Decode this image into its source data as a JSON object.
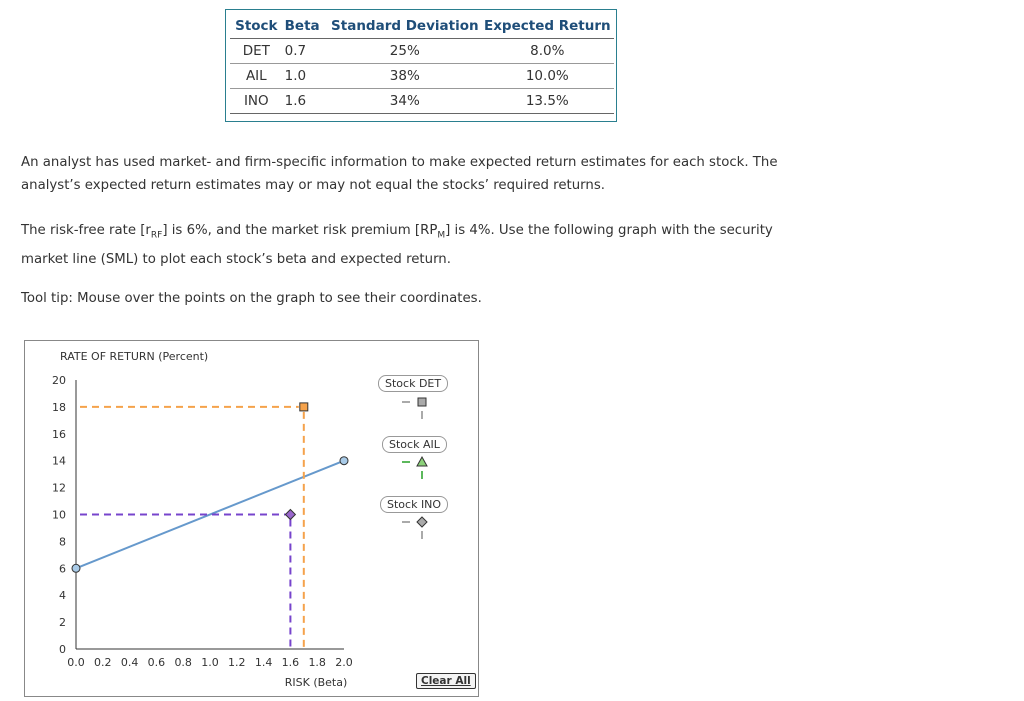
{
  "table": {
    "headers": [
      "Stock",
      "Beta",
      "Standard Deviation",
      "Expected Return"
    ],
    "rows": [
      [
        "DET",
        "0.7",
        "25%",
        "8.0%"
      ],
      [
        "AIL",
        "1.0",
        "38%",
        "10.0%"
      ],
      [
        "INO",
        "1.6",
        "34%",
        "13.5%"
      ]
    ]
  },
  "text": {
    "p1_line1": "An analyst has used market- and firm-specific information to make expected return estimates for each stock. The",
    "p1_line2": "analyst’s expected return estimates may or may not equal the stocks’ required returns.",
    "p2_a": "The risk-free rate [r",
    "p2_sub1": "RF",
    "p2_b": "] is 6%, and the market risk premium [RP",
    "p2_sub2": "M",
    "p2_c": "] is 4%. Use the following graph with the security",
    "p2_line2": "market line (SML) to plot each stock’s beta and expected return.",
    "p3": "Tool tip: Mouse over the points on the graph to see their coordinates."
  },
  "chart_data": {
    "type": "scatter",
    "ylabel": "RATE OF RETURN (Percent)",
    "xlabel": "RISK (Beta)",
    "xlim": [
      0,
      2.0
    ],
    "ylim": [
      0,
      20
    ],
    "x_ticks": [
      "0.0",
      "0.2",
      "0.4",
      "0.6",
      "0.8",
      "1.0",
      "1.2",
      "1.4",
      "1.6",
      "1.8",
      "2.0"
    ],
    "y_ticks": [
      "0",
      "2",
      "4",
      "6",
      "8",
      "10",
      "12",
      "14",
      "16",
      "18",
      "20"
    ],
    "sml": {
      "x": [
        0,
        2.0
      ],
      "y": [
        6,
        14
      ],
      "color": "#6699cc"
    },
    "points": [
      {
        "name": "orange-square",
        "x": 1.7,
        "y": 18,
        "shape": "square",
        "color": "#f5a24b",
        "dash": "#f5a24b"
      },
      {
        "name": "purple-diamond",
        "x": 1.6,
        "y": 10,
        "shape": "diamond",
        "color": "#9966cc",
        "dash": "#7744cc"
      }
    ]
  },
  "legend": {
    "items": [
      {
        "label": "Stock DET",
        "shape": "square",
        "color": "#aaaaaa",
        "dash": "#aaaaaa"
      },
      {
        "label": "Stock AIL",
        "shape": "triangle",
        "color": "#8cd17a",
        "dash": "#5cb85c"
      },
      {
        "label": "Stock INO",
        "shape": "diamond",
        "color": "#aaaaaa",
        "dash": "#aaaaaa"
      }
    ],
    "clear_label": "Clear All"
  }
}
